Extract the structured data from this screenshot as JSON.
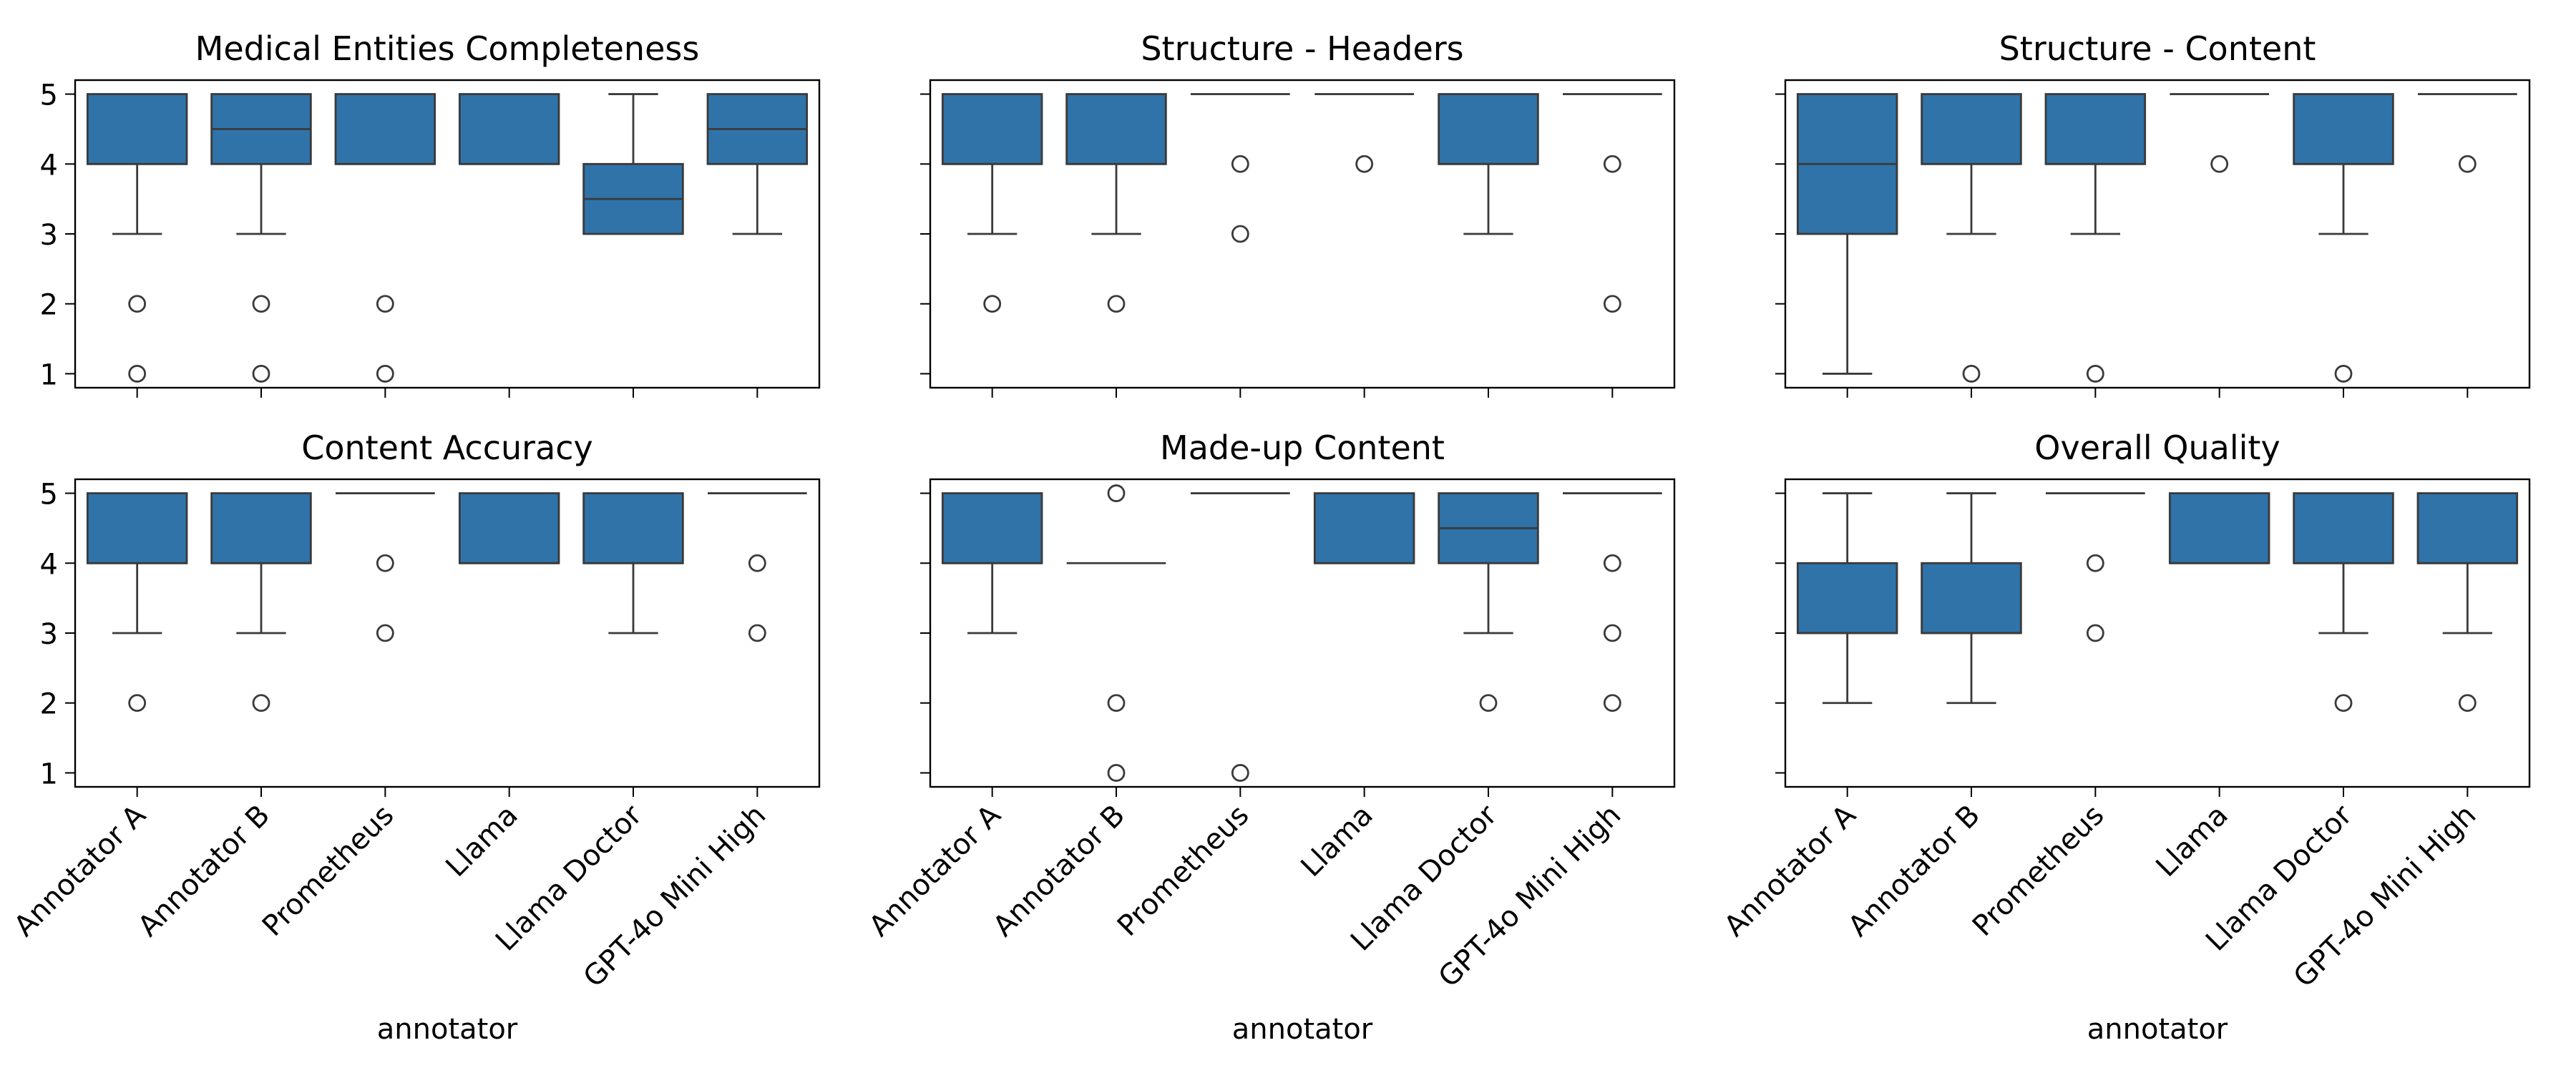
{
  "chart_data": {
    "type": "box",
    "ylim": [
      0.8,
      5.2
    ],
    "yticks": [
      1,
      2,
      3,
      4,
      5
    ],
    "xlabel": "annotator",
    "accent_color": "#2f73a9",
    "categories": [
      "Annotator A",
      "Annotator B",
      "Prometheus",
      "Llama",
      "Llama Doctor",
      "GPT-4o Mini High"
    ],
    "panels": [
      {
        "title": "Medical Entities Completeness",
        "boxes": [
          {
            "category": "Annotator A",
            "whislo": 3,
            "q1": 4,
            "med": 4,
            "q3": 5,
            "whishi": 5,
            "fliers": [
              2,
              1
            ]
          },
          {
            "category": "Annotator B",
            "whislo": 3,
            "q1": 4,
            "med": 4.5,
            "q3": 5,
            "whishi": 5,
            "fliers": [
              2,
              1
            ]
          },
          {
            "category": "Prometheus",
            "whislo": 4,
            "q1": 4,
            "med": 4,
            "q3": 5,
            "whishi": 5,
            "fliers": [
              2,
              1
            ]
          },
          {
            "category": "Llama",
            "whislo": 4,
            "q1": 4,
            "med": 4,
            "q3": 5,
            "whishi": 5,
            "fliers": []
          },
          {
            "category": "Llama Doctor",
            "whislo": 3,
            "q1": 3,
            "med": 3.5,
            "q3": 4,
            "whishi": 5,
            "fliers": []
          },
          {
            "category": "GPT-4o Mini High",
            "whislo": 3,
            "q1": 4,
            "med": 4.5,
            "q3": 5,
            "whishi": 5,
            "fliers": []
          }
        ]
      },
      {
        "title": "Structure - Headers",
        "boxes": [
          {
            "category": "Annotator A",
            "whislo": 3,
            "q1": 4,
            "med": 4,
            "q3": 5,
            "whishi": 5,
            "fliers": [
              2
            ]
          },
          {
            "category": "Annotator B",
            "whislo": 3,
            "q1": 4,
            "med": 4,
            "q3": 5,
            "whishi": 5,
            "fliers": [
              2
            ]
          },
          {
            "category": "Prometheus",
            "whislo": 5,
            "q1": 5,
            "med": 5,
            "q3": 5,
            "whishi": 5,
            "fliers": [
              4,
              3
            ]
          },
          {
            "category": "Llama",
            "whislo": 5,
            "q1": 5,
            "med": 5,
            "q3": 5,
            "whishi": 5,
            "fliers": [
              4
            ]
          },
          {
            "category": "Llama Doctor",
            "whislo": 3,
            "q1": 4,
            "med": 4,
            "q3": 5,
            "whishi": 5,
            "fliers": []
          },
          {
            "category": "GPT-4o Mini High",
            "whislo": 5,
            "q1": 5,
            "med": 5,
            "q3": 5,
            "whishi": 5,
            "fliers": [
              4,
              2
            ]
          }
        ]
      },
      {
        "title": "Structure - Content",
        "boxes": [
          {
            "category": "Annotator A",
            "whislo": 1,
            "q1": 3,
            "med": 4,
            "q3": 5,
            "whishi": 5,
            "fliers": []
          },
          {
            "category": "Annotator B",
            "whislo": 3,
            "q1": 4,
            "med": 4,
            "q3": 5,
            "whishi": 5,
            "fliers": [
              1
            ]
          },
          {
            "category": "Prometheus",
            "whislo": 3,
            "q1": 4,
            "med": 4,
            "q3": 5,
            "whishi": 5,
            "fliers": [
              1
            ]
          },
          {
            "category": "Llama",
            "whislo": 5,
            "q1": 5,
            "med": 5,
            "q3": 5,
            "whishi": 5,
            "fliers": [
              4
            ]
          },
          {
            "category": "Llama Doctor",
            "whislo": 3,
            "q1": 4,
            "med": 4,
            "q3": 5,
            "whishi": 5,
            "fliers": [
              1
            ]
          },
          {
            "category": "GPT-4o Mini High",
            "whislo": 5,
            "q1": 5,
            "med": 5,
            "q3": 5,
            "whishi": 5,
            "fliers": [
              4
            ]
          }
        ]
      },
      {
        "title": "Content Accuracy",
        "boxes": [
          {
            "category": "Annotator A",
            "whislo": 3,
            "q1": 4,
            "med": 4,
            "q3": 5,
            "whishi": 5,
            "fliers": [
              2
            ]
          },
          {
            "category": "Annotator B",
            "whislo": 3,
            "q1": 4,
            "med": 4,
            "q3": 5,
            "whishi": 5,
            "fliers": [
              2
            ]
          },
          {
            "category": "Prometheus",
            "whislo": 5,
            "q1": 5,
            "med": 5,
            "q3": 5,
            "whishi": 5,
            "fliers": [
              4,
              3
            ]
          },
          {
            "category": "Llama",
            "whislo": 4,
            "q1": 4,
            "med": 4,
            "q3": 5,
            "whishi": 5,
            "fliers": []
          },
          {
            "category": "Llama Doctor",
            "whislo": 3,
            "q1": 4,
            "med": 4,
            "q3": 5,
            "whishi": 5,
            "fliers": []
          },
          {
            "category": "GPT-4o Mini High",
            "whislo": 5,
            "q1": 5,
            "med": 5,
            "q3": 5,
            "whishi": 5,
            "fliers": [
              4,
              3
            ]
          }
        ]
      },
      {
        "title": "Made-up Content",
        "boxes": [
          {
            "category": "Annotator A",
            "whislo": 3,
            "q1": 4,
            "med": 4,
            "q3": 5,
            "whishi": 5,
            "fliers": []
          },
          {
            "category": "Annotator B",
            "whislo": 4,
            "q1": 4,
            "med": 4,
            "q3": 4,
            "whishi": 4,
            "fliers": [
              5,
              2,
              1
            ]
          },
          {
            "category": "Prometheus",
            "whislo": 5,
            "q1": 5,
            "med": 5,
            "q3": 5,
            "whishi": 5,
            "fliers": [
              1
            ]
          },
          {
            "category": "Llama",
            "whislo": 4,
            "q1": 4,
            "med": 4,
            "q3": 5,
            "whishi": 5,
            "fliers": []
          },
          {
            "category": "Llama Doctor",
            "whislo": 3,
            "q1": 4,
            "med": 4.5,
            "q3": 5,
            "whishi": 5,
            "fliers": [
              2
            ]
          },
          {
            "category": "GPT-4o Mini High",
            "whislo": 5,
            "q1": 5,
            "med": 5,
            "q3": 5,
            "whishi": 5,
            "fliers": [
              4,
              3,
              2
            ]
          }
        ]
      },
      {
        "title": "Overall Quality",
        "boxes": [
          {
            "category": "Annotator A",
            "whislo": 2,
            "q1": 3,
            "med": 3,
            "q3": 4,
            "whishi": 5,
            "fliers": []
          },
          {
            "category": "Annotator B",
            "whislo": 2,
            "q1": 3,
            "med": 3,
            "q3": 4,
            "whishi": 5,
            "fliers": []
          },
          {
            "category": "Prometheus",
            "whislo": 5,
            "q1": 5,
            "med": 5,
            "q3": 5,
            "whishi": 5,
            "fliers": [
              4,
              3
            ]
          },
          {
            "category": "Llama",
            "whislo": 4,
            "q1": 4,
            "med": 4,
            "q3": 5,
            "whishi": 5,
            "fliers": []
          },
          {
            "category": "Llama Doctor",
            "whislo": 3,
            "q1": 4,
            "med": 4,
            "q3": 5,
            "whishi": 5,
            "fliers": [
              2
            ]
          },
          {
            "category": "GPT-4o Mini High",
            "whislo": 3,
            "q1": 4,
            "med": 4,
            "q3": 5,
            "whishi": 5,
            "fliers": [
              2
            ]
          }
        ]
      }
    ]
  }
}
